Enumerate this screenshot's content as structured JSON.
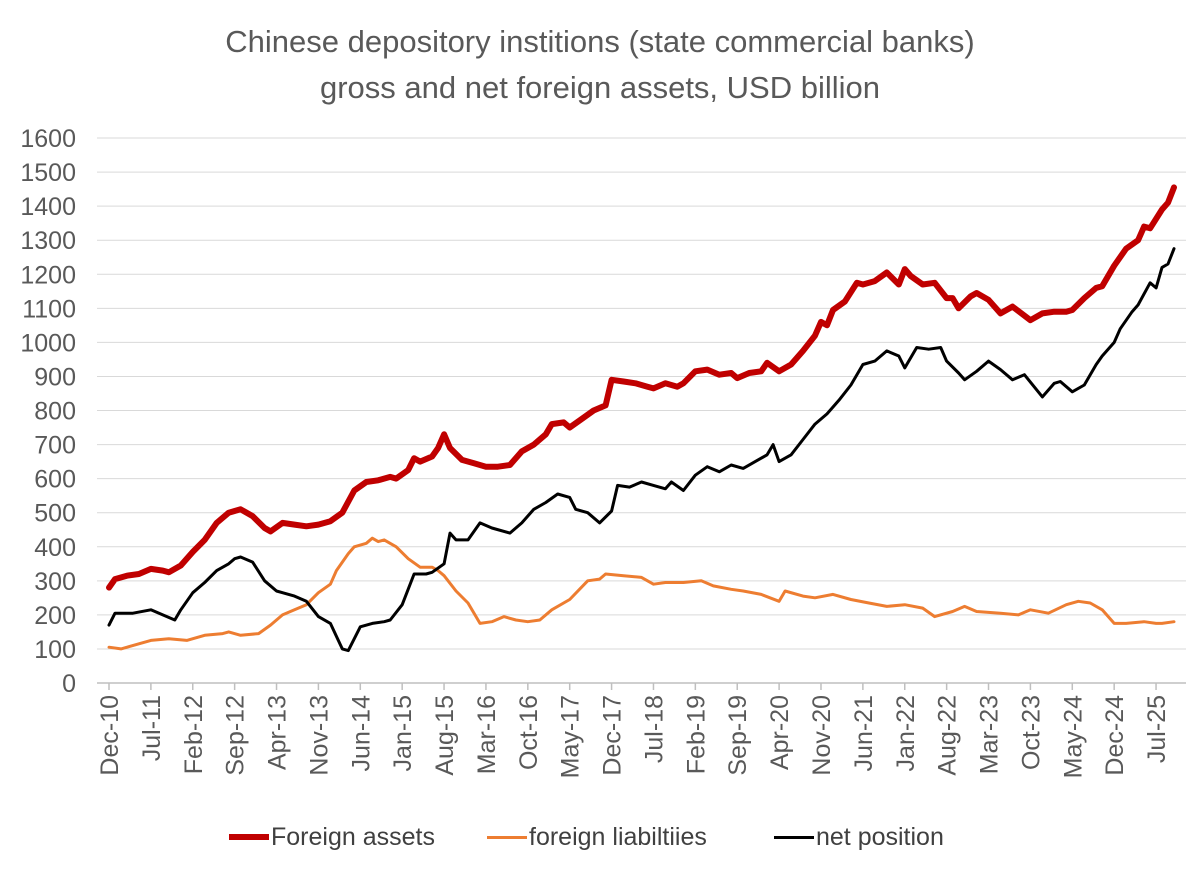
{
  "chart_data": {
    "type": "line",
    "title_line1": "Chinese depository institions (state commercial banks)",
    "title_line2": "gross and net foreign assets, USD billion",
    "xlabel": "",
    "ylabel": "",
    "ylim": [
      0,
      1600
    ],
    "yticks": [
      0,
      100,
      200,
      300,
      400,
      500,
      600,
      700,
      800,
      900,
      1000,
      1100,
      1200,
      1300,
      1400,
      1500,
      1600
    ],
    "x_start": "Dec-10",
    "x_end": "Oct-25",
    "xtick_labels": [
      "Dec-10",
      "Jul-11",
      "Feb-12",
      "Sep-12",
      "Apr-13",
      "Nov-13",
      "Jun-14",
      "Jan-15",
      "Aug-15",
      "Mar-16",
      "Oct-16",
      "May-17",
      "Dec-17",
      "Jul-18",
      "Feb-19",
      "Sep-19",
      "Apr-20",
      "Nov-20",
      "Jun-21",
      "Jan-22",
      "Aug-22",
      "Mar-23",
      "Oct-23",
      "May-24",
      "Dec-24",
      "Jul-25"
    ],
    "grid": "horizontal",
    "legend_position": "bottom",
    "series": [
      {
        "name": "Foreign assets",
        "color": "#C00000",
        "points": [
          [
            "Dec-10",
            280
          ],
          [
            "Jan-11",
            305
          ],
          [
            "Mar-11",
            315
          ],
          [
            "May-11",
            320
          ],
          [
            "Jul-11",
            335
          ],
          [
            "Sep-11",
            330
          ],
          [
            "Oct-11",
            325
          ],
          [
            "Dec-11",
            345
          ],
          [
            "Feb-12",
            385
          ],
          [
            "Apr-12",
            420
          ],
          [
            "Jun-12",
            470
          ],
          [
            "Aug-12",
            500
          ],
          [
            "Oct-12",
            510
          ],
          [
            "Dec-12",
            490
          ],
          [
            "Feb-13",
            455
          ],
          [
            "Mar-13",
            445
          ],
          [
            "May-13",
            470
          ],
          [
            "Jul-13",
            465
          ],
          [
            "Sep-13",
            460
          ],
          [
            "Nov-13",
            465
          ],
          [
            "Jan-14",
            475
          ],
          [
            "Mar-14",
            500
          ],
          [
            "May-14",
            565
          ],
          [
            "Jul-14",
            590
          ],
          [
            "Sep-14",
            595
          ],
          [
            "Nov-14",
            605
          ],
          [
            "Dec-14",
            600
          ],
          [
            "Feb-15",
            625
          ],
          [
            "Mar-15",
            660
          ],
          [
            "Apr-15",
            650
          ],
          [
            "Jun-15",
            665
          ],
          [
            "Jul-15",
            690
          ],
          [
            "Aug-15",
            730
          ],
          [
            "Sep-15",
            690
          ],
          [
            "Nov-15",
            655
          ],
          [
            "Jan-16",
            645
          ],
          [
            "Mar-16",
            635
          ],
          [
            "May-16",
            635
          ],
          [
            "Jul-16",
            640
          ],
          [
            "Sep-16",
            680
          ],
          [
            "Nov-16",
            700
          ],
          [
            "Jan-17",
            730
          ],
          [
            "Feb-17",
            760
          ],
          [
            "Apr-17",
            765
          ],
          [
            "May-17",
            750
          ],
          [
            "Jul-17",
            775
          ],
          [
            "Sep-17",
            800
          ],
          [
            "Nov-17",
            815
          ],
          [
            "Dec-17",
            890
          ],
          [
            "Feb-18",
            885
          ],
          [
            "Apr-18",
            880
          ],
          [
            "Jun-18",
            870
          ],
          [
            "Jul-18",
            865
          ],
          [
            "Sep-18",
            880
          ],
          [
            "Nov-18",
            870
          ],
          [
            "Dec-18",
            880
          ],
          [
            "Feb-19",
            915
          ],
          [
            "Apr-19",
            920
          ],
          [
            "Jun-19",
            905
          ],
          [
            "Aug-19",
            910
          ],
          [
            "Sep-19",
            895
          ],
          [
            "Nov-19",
            910
          ],
          [
            "Jan-20",
            915
          ],
          [
            "Feb-20",
            940
          ],
          [
            "Apr-20",
            915
          ],
          [
            "Jun-20",
            935
          ],
          [
            "Aug-20",
            975
          ],
          [
            "Oct-20",
            1020
          ],
          [
            "Nov-20",
            1060
          ],
          [
            "Dec-20",
            1050
          ],
          [
            "Jan-21",
            1095
          ],
          [
            "Mar-21",
            1120
          ],
          [
            "May-21",
            1175
          ],
          [
            "Jun-21",
            1170
          ],
          [
            "Aug-21",
            1180
          ],
          [
            "Oct-21",
            1205
          ],
          [
            "Dec-21",
            1170
          ],
          [
            "Jan-22",
            1215
          ],
          [
            "Feb-22",
            1195
          ],
          [
            "Apr-22",
            1170
          ],
          [
            "Jun-22",
            1175
          ],
          [
            "Aug-22",
            1130
          ],
          [
            "Sep-22",
            1130
          ],
          [
            "Oct-22",
            1100
          ],
          [
            "Dec-22",
            1135
          ],
          [
            "Jan-23",
            1145
          ],
          [
            "Mar-23",
            1125
          ],
          [
            "May-23",
            1085
          ],
          [
            "Jul-23",
            1105
          ],
          [
            "Oct-23",
            1065
          ],
          [
            "Dec-23",
            1085
          ],
          [
            "Feb-24",
            1090
          ],
          [
            "Apr-24",
            1090
          ],
          [
            "May-24",
            1095
          ],
          [
            "Jul-24",
            1130
          ],
          [
            "Sep-24",
            1160
          ],
          [
            "Oct-24",
            1165
          ],
          [
            "Dec-24",
            1225
          ],
          [
            "Feb-25",
            1275
          ],
          [
            "Apr-25",
            1300
          ],
          [
            "May-25",
            1340
          ],
          [
            "Jun-25",
            1335
          ],
          [
            "Aug-25",
            1390
          ],
          [
            "Sep-25",
            1410
          ],
          [
            "Oct-25",
            1455
          ]
        ]
      },
      {
        "name": "foreign liabiltiies",
        "color": "#ED7D31",
        "points": [
          [
            "Dec-10",
            105
          ],
          [
            "Feb-11",
            100
          ],
          [
            "May-11",
            115
          ],
          [
            "Jul-11",
            125
          ],
          [
            "Oct-11",
            130
          ],
          [
            "Jan-12",
            125
          ],
          [
            "Apr-12",
            140
          ],
          [
            "Jul-12",
            145
          ],
          [
            "Aug-12",
            150
          ],
          [
            "Oct-12",
            140
          ],
          [
            "Jan-13",
            145
          ],
          [
            "Mar-13",
            170
          ],
          [
            "May-13",
            200
          ],
          [
            "Jul-13",
            215
          ],
          [
            "Sep-13",
            230
          ],
          [
            "Nov-13",
            265
          ],
          [
            "Jan-14",
            290
          ],
          [
            "Feb-14",
            330
          ],
          [
            "Apr-14",
            380
          ],
          [
            "May-14",
            400
          ],
          [
            "Jul-14",
            410
          ],
          [
            "Aug-14",
            425
          ],
          [
            "Sep-14",
            415
          ],
          [
            "Oct-14",
            420
          ],
          [
            "Dec-14",
            400
          ],
          [
            "Feb-15",
            365
          ],
          [
            "Apr-15",
            340
          ],
          [
            "Jun-15",
            340
          ],
          [
            "Jul-15",
            330
          ],
          [
            "Aug-15",
            315
          ],
          [
            "Oct-15",
            270
          ],
          [
            "Dec-15",
            235
          ],
          [
            "Feb-16",
            175
          ],
          [
            "Apr-16",
            180
          ],
          [
            "Jun-16",
            195
          ],
          [
            "Aug-16",
            185
          ],
          [
            "Oct-16",
            180
          ],
          [
            "Dec-16",
            185
          ],
          [
            "Feb-17",
            215
          ],
          [
            "May-17",
            245
          ],
          [
            "Aug-17",
            300
          ],
          [
            "Oct-17",
            305
          ],
          [
            "Nov-17",
            320
          ],
          [
            "Feb-18",
            315
          ],
          [
            "May-18",
            310
          ],
          [
            "Jul-18",
            290
          ],
          [
            "Sep-18",
            295
          ],
          [
            "Dec-18",
            295
          ],
          [
            "Mar-19",
            300
          ],
          [
            "May-19",
            285
          ],
          [
            "Aug-19",
            275
          ],
          [
            "Oct-19",
            270
          ],
          [
            "Jan-20",
            260
          ],
          [
            "Apr-20",
            240
          ],
          [
            "May-20",
            270
          ],
          [
            "Aug-20",
            255
          ],
          [
            "Oct-20",
            250
          ],
          [
            "Jan-21",
            260
          ],
          [
            "Apr-21",
            245
          ],
          [
            "Jul-21",
            235
          ],
          [
            "Oct-21",
            225
          ],
          [
            "Jan-22",
            230
          ],
          [
            "Apr-22",
            220
          ],
          [
            "Jun-22",
            195
          ],
          [
            "Sep-22",
            210
          ],
          [
            "Nov-22",
            225
          ],
          [
            "Jan-23",
            210
          ],
          [
            "May-23",
            205
          ],
          [
            "Aug-23",
            200
          ],
          [
            "Oct-23",
            215
          ],
          [
            "Jan-24",
            205
          ],
          [
            "Apr-24",
            230
          ],
          [
            "Jun-24",
            240
          ],
          [
            "Aug-24",
            235
          ],
          [
            "Oct-24",
            215
          ],
          [
            "Dec-24",
            175
          ],
          [
            "Feb-25",
            175
          ],
          [
            "May-25",
            180
          ],
          [
            "Jul-25",
            175
          ],
          [
            "Aug-25",
            175
          ],
          [
            "Oct-25",
            180
          ]
        ]
      },
      {
        "name": "net position",
        "color": "#000000",
        "points": [
          [
            "Dec-10",
            170
          ],
          [
            "Jan-11",
            205
          ],
          [
            "Apr-11",
            205
          ],
          [
            "Jul-11",
            215
          ],
          [
            "Sep-11",
            200
          ],
          [
            "Nov-11",
            185
          ],
          [
            "Dec-11",
            215
          ],
          [
            "Feb-12",
            265
          ],
          [
            "Apr-12",
            295
          ],
          [
            "Jun-12",
            330
          ],
          [
            "Aug-12",
            350
          ],
          [
            "Sep-12",
            365
          ],
          [
            "Oct-12",
            370
          ],
          [
            "Dec-12",
            355
          ],
          [
            "Feb-13",
            300
          ],
          [
            "Apr-13",
            270
          ],
          [
            "May-13",
            265
          ],
          [
            "Jul-13",
            255
          ],
          [
            "Sep-13",
            240
          ],
          [
            "Nov-13",
            195
          ],
          [
            "Jan-14",
            175
          ],
          [
            "Mar-14",
            100
          ],
          [
            "Apr-14",
            95
          ],
          [
            "Jun-14",
            165
          ],
          [
            "Aug-14",
            175
          ],
          [
            "Oct-14",
            180
          ],
          [
            "Nov-14",
            185
          ],
          [
            "Jan-15",
            230
          ],
          [
            "Mar-15",
            320
          ],
          [
            "May-15",
            320
          ],
          [
            "Jun-15",
            325
          ],
          [
            "Aug-15",
            350
          ],
          [
            "Sep-15",
            440
          ],
          [
            "Oct-15",
            420
          ],
          [
            "Dec-15",
            420
          ],
          [
            "Feb-16",
            470
          ],
          [
            "Apr-16",
            455
          ],
          [
            "Jul-16",
            440
          ],
          [
            "Sep-16",
            470
          ],
          [
            "Nov-16",
            510
          ],
          [
            "Jan-17",
            530
          ],
          [
            "Mar-17",
            555
          ],
          [
            "May-17",
            545
          ],
          [
            "Jun-17",
            510
          ],
          [
            "Aug-17",
            500
          ],
          [
            "Oct-17",
            470
          ],
          [
            "Dec-17",
            505
          ],
          [
            "Jan-18",
            580
          ],
          [
            "Mar-18",
            575
          ],
          [
            "May-18",
            590
          ],
          [
            "Jul-18",
            580
          ],
          [
            "Sep-18",
            570
          ],
          [
            "Oct-18",
            590
          ],
          [
            "Dec-18",
            565
          ],
          [
            "Feb-19",
            610
          ],
          [
            "Apr-19",
            635
          ],
          [
            "Jun-19",
            620
          ],
          [
            "Aug-19",
            640
          ],
          [
            "Oct-19",
            630
          ],
          [
            "Dec-19",
            650
          ],
          [
            "Feb-20",
            670
          ],
          [
            "Mar-20",
            700
          ],
          [
            "Apr-20",
            650
          ],
          [
            "Jun-20",
            670
          ],
          [
            "Aug-20",
            715
          ],
          [
            "Oct-20",
            760
          ],
          [
            "Dec-20",
            790
          ],
          [
            "Feb-21",
            830
          ],
          [
            "Apr-21",
            875
          ],
          [
            "Jun-21",
            935
          ],
          [
            "Aug-21",
            945
          ],
          [
            "Oct-21",
            975
          ],
          [
            "Dec-21",
            960
          ],
          [
            "Jan-22",
            925
          ],
          [
            "Mar-22",
            985
          ],
          [
            "May-22",
            980
          ],
          [
            "Jul-22",
            985
          ],
          [
            "Aug-22",
            945
          ],
          [
            "Oct-22",
            910
          ],
          [
            "Nov-22",
            890
          ],
          [
            "Jan-23",
            915
          ],
          [
            "Mar-23",
            945
          ],
          [
            "May-23",
            920
          ],
          [
            "Jul-23",
            890
          ],
          [
            "Sep-23",
            905
          ],
          [
            "Dec-23",
            840
          ],
          [
            "Feb-24",
            880
          ],
          [
            "Mar-24",
            885
          ],
          [
            "May-24",
            855
          ],
          [
            "Jul-24",
            875
          ],
          [
            "Sep-24",
            935
          ],
          [
            "Oct-24",
            960
          ],
          [
            "Dec-24",
            1000
          ],
          [
            "Jan-25",
            1040
          ],
          [
            "Mar-25",
            1090
          ],
          [
            "Apr-25",
            1110
          ],
          [
            "Jun-25",
            1175
          ],
          [
            "Jul-25",
            1160
          ],
          [
            "Aug-25",
            1220
          ],
          [
            "Sep-25",
            1230
          ],
          [
            "Oct-25",
            1275
          ]
        ]
      }
    ]
  }
}
